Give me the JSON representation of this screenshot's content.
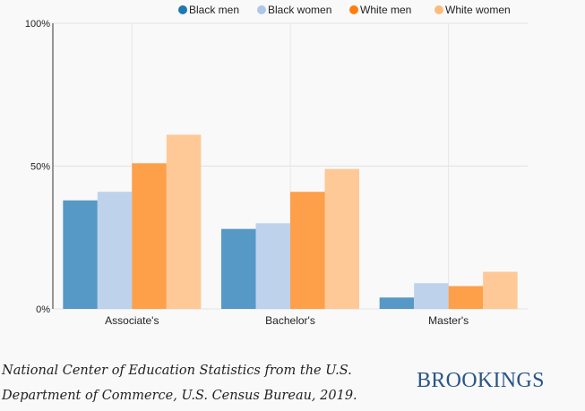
{
  "chart_data": {
    "type": "bar",
    "title": "",
    "xlabel": "",
    "ylabel": "",
    "categories": [
      "Associate's",
      "Bachelor's",
      "Master's"
    ],
    "series": [
      {
        "name": "Black men",
        "color": "#5698c6",
        "legend_color": "#1f77b4",
        "values": [
          38,
          28,
          4
        ]
      },
      {
        "name": "Black women",
        "color": "#bed2ec",
        "legend_color": "#aec7e8",
        "values": [
          41,
          30,
          9
        ]
      },
      {
        "name": "White men",
        "color": "#fe9f4a",
        "legend_color": "#ff7f0e",
        "values": [
          51,
          41,
          8
        ]
      },
      {
        "name": "White women",
        "color": "#fec996",
        "legend_color": "#ffbb78",
        "values": [
          61,
          49,
          13
        ]
      }
    ],
    "ylim": [
      0,
      100
    ],
    "yticks": [
      0,
      50,
      100
    ],
    "ytick_labels": [
      "0%",
      "50%",
      "100%"
    ],
    "grid": true,
    "legend_position": "top-right"
  },
  "source": {
    "line1": "National Center of Education Statistics from the U.S.",
    "line2": "Department of Commerce, U.S. Census Bureau, 2019."
  },
  "logo": "BROOKINGS"
}
